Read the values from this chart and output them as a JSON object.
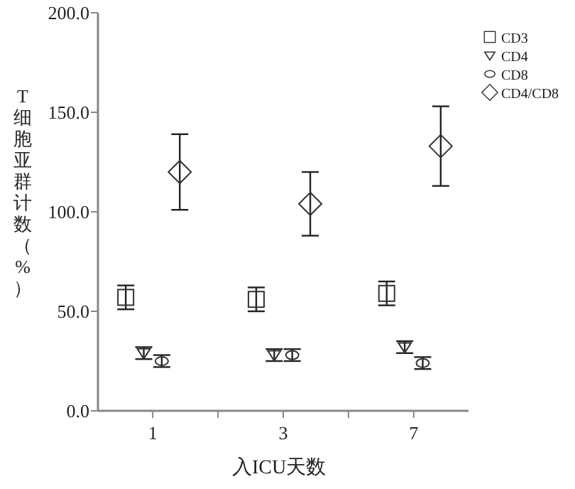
{
  "chart_data": {
    "type": "scatter",
    "xlabel": "入ICU天数",
    "ylabel": "T细胞亚群计数（%）",
    "categories": [
      "1",
      "3",
      "7"
    ],
    "series": [
      {
        "name": "CD3",
        "color": "#333333",
        "marker": "square",
        "values": [
          57,
          56,
          59
        ],
        "errors": [
          6,
          6,
          6
        ]
      },
      {
        "name": "CD4",
        "color": "#333333",
        "marker": "triangle",
        "values": [
          29,
          28,
          32
        ],
        "errors": [
          3,
          3,
          3
        ]
      },
      {
        "name": "CD8",
        "color": "#333333",
        "marker": "circle",
        "values": [
          25,
          28,
          24
        ],
        "errors": [
          3,
          3,
          3
        ]
      },
      {
        "name": "CD4/CD8",
        "color": "#333333",
        "marker": "diamond",
        "values": [
          120,
          104,
          133
        ],
        "errors": [
          19,
          16,
          20
        ]
      }
    ],
    "ylim": [
      0,
      200
    ],
    "yticks": [
      {
        "value": 0,
        "label": "0.0"
      },
      {
        "value": 50,
        "label": "50.0"
      },
      {
        "value": 100,
        "label": "100.0"
      },
      {
        "value": 150,
        "label": "150.0"
      },
      {
        "value": 200,
        "label": "200.0"
      }
    ],
    "grid": false,
    "legend": "top right"
  }
}
